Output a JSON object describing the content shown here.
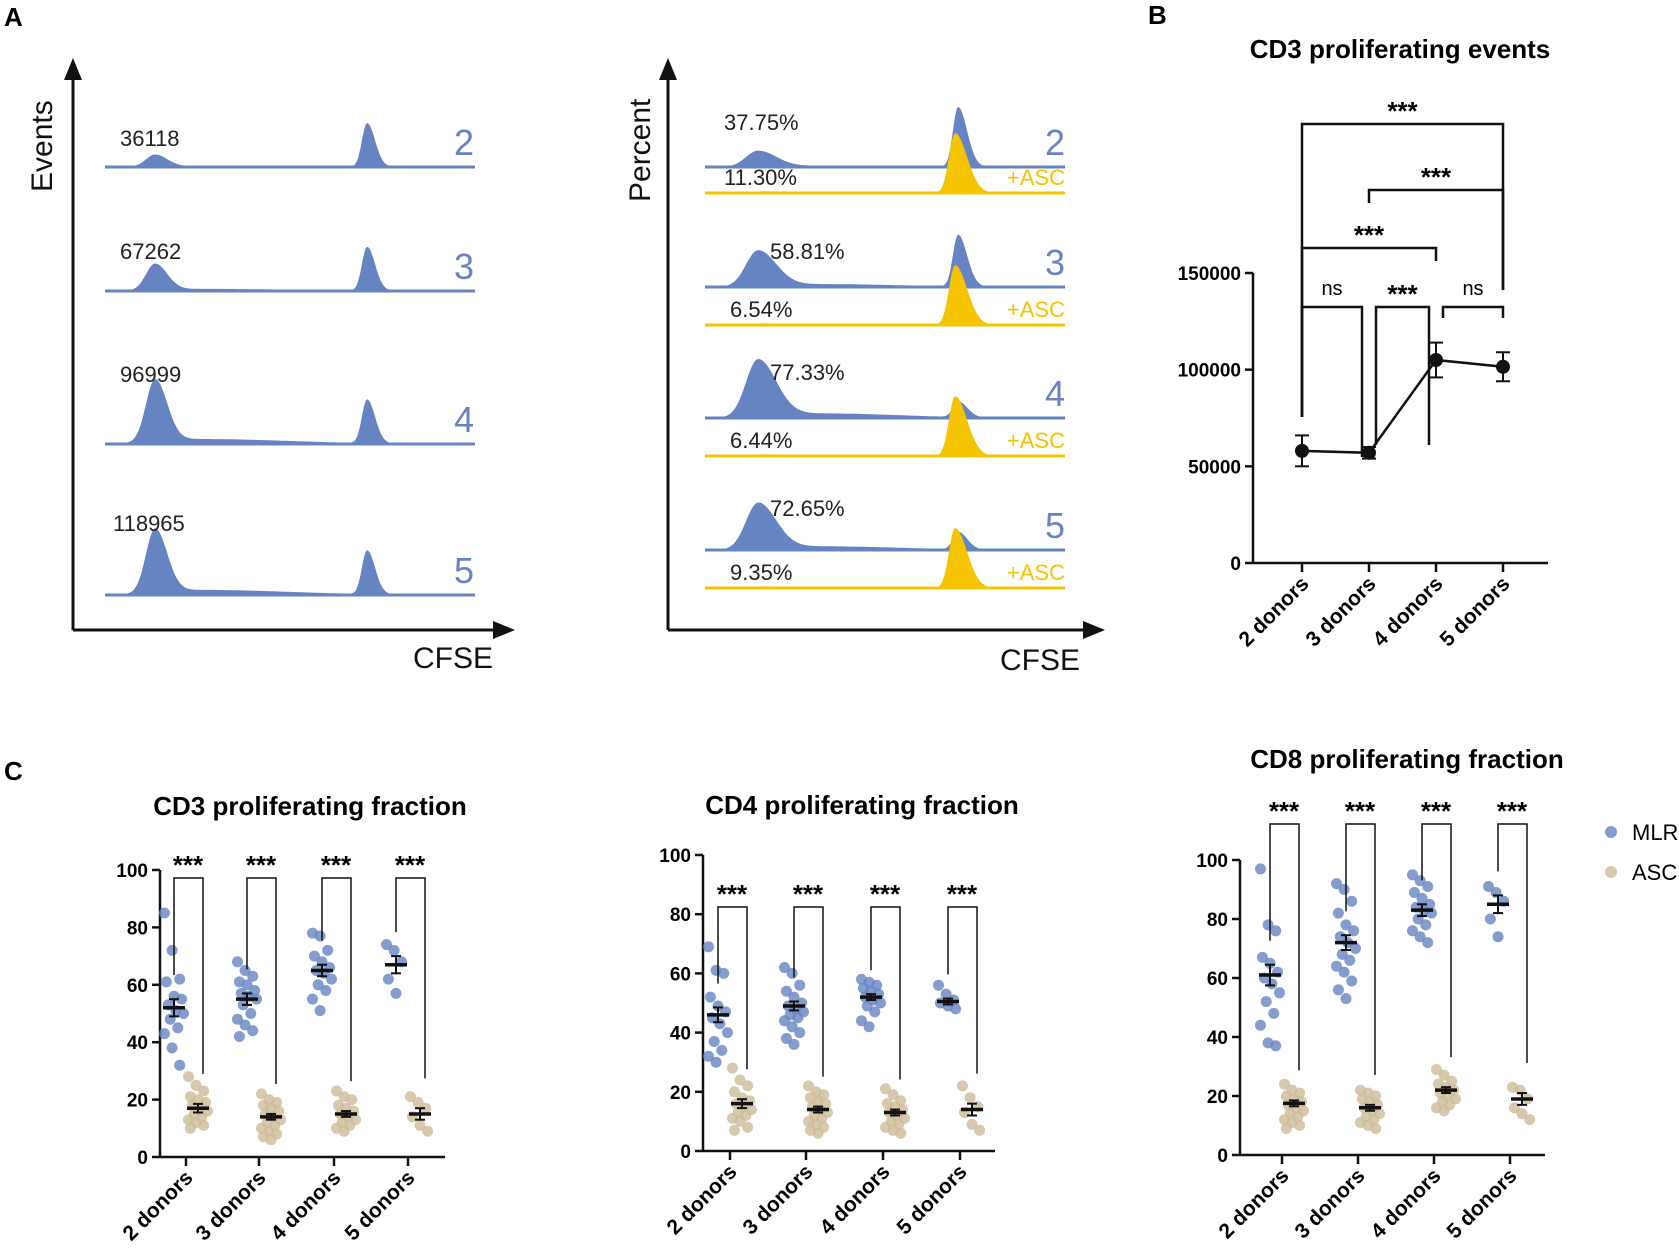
{
  "colors": {
    "blue": "#6683c2",
    "gold": "#f5c400",
    "asc_point": "#cdbb99",
    "black": "#111111"
  },
  "panel_labels": [
    "A",
    "B",
    "C"
  ],
  "panel_a": {
    "left": {
      "ylabel": "Events",
      "xlabel": "CFSE",
      "rows": [
        {
          "donor": "2",
          "count": "36118",
          "prolif_peak": 0.15
        },
        {
          "donor": "3",
          "count": "67262",
          "prolif_peak": 0.33
        },
        {
          "donor": "4",
          "count": "96999",
          "prolif_peak": 0.78
        },
        {
          "donor": "5",
          "count": "118965",
          "prolif_peak": 0.8
        }
      ]
    },
    "right": {
      "ylabel": "Percent",
      "xlabel": "CFSE",
      "asc_label": "+ASC",
      "rows": [
        {
          "donor": "2",
          "mlr_percent": "37.75%",
          "asc_percent": "11.30%"
        },
        {
          "donor": "3",
          "mlr_percent": "58.81%",
          "asc_percent": "6.54%"
        },
        {
          "donor": "4",
          "mlr_percent": "77.33%",
          "asc_percent": "6.44%"
        },
        {
          "donor": "5",
          "mlr_percent": "72.65%",
          "asc_percent": "9.35%"
        }
      ]
    }
  },
  "chart_data": [
    {
      "id": "B",
      "type": "line",
      "title": "CD3 proliferating events",
      "categories": [
        "2 donors",
        "3 donors",
        "4 donors",
        "5 donors"
      ],
      "values": [
        58000,
        57000,
        105000,
        101500
      ],
      "errors": [
        8000,
        3000,
        9000,
        7500
      ],
      "ylim": [
        0,
        150000
      ],
      "yticks": [
        "0",
        "50000",
        "100000",
        "150000"
      ],
      "comparisons": [
        {
          "from": 0,
          "to": 1,
          "label": "ns"
        },
        {
          "from": 1,
          "to": 2,
          "label": "***"
        },
        {
          "from": 2,
          "to": 3,
          "label": "ns"
        },
        {
          "from": 0,
          "to": 2,
          "label": "***"
        },
        {
          "from": 1,
          "to": 3,
          "label": "***"
        },
        {
          "from": 0,
          "to": 3,
          "label": "***"
        }
      ]
    },
    {
      "id": "C1",
      "type": "scatter",
      "title": "CD3 proliferating fraction",
      "categories": [
        "2 donors",
        "3 donors",
        "4 donors",
        "5 donors"
      ],
      "ylim": [
        0,
        100
      ],
      "yticks": [
        "0",
        "20",
        "40",
        "60",
        "80",
        "100"
      ],
      "significance": [
        "***",
        "***",
        "***",
        "***"
      ],
      "series": [
        {
          "name": "MLR",
          "means": [
            52,
            55,
            65,
            67
          ],
          "sems": [
            3,
            2,
            2,
            3
          ],
          "points": [
            [
              85,
              72,
              62,
              61,
              56,
              55,
              53,
              51,
              50,
              48,
              45,
              43,
              38,
              32
            ],
            [
              68,
              65,
              63,
              61,
              60,
              58,
              57,
              56,
              55,
              53,
              50,
              48,
              46,
              44,
              42
            ],
            [
              78,
              77,
              72,
              70,
              68,
              66,
              65,
              64,
              62,
              60,
              58,
              55,
              51
            ],
            [
              74,
              72,
              68,
              62,
              57
            ]
          ]
        },
        {
          "name": "ASC",
          "means": [
            17,
            14,
            15,
            15
          ],
          "sems": [
            1.5,
            1,
            1,
            2
          ],
          "points": [
            [
              28,
              25,
              23,
              21,
              20,
              19,
              18,
              17,
              16,
              15,
              14,
              13,
              12,
              11,
              10
            ],
            [
              22,
              20,
              19,
              18,
              17,
              16,
              15,
              14,
              13,
              12,
              11,
              10,
              9,
              8,
              7,
              6
            ],
            [
              23,
              21,
              20,
              18,
              17,
              16,
              15,
              14,
              13,
              12,
              11,
              10,
              9
            ],
            [
              21,
              19,
              17,
              14,
              11,
              9
            ]
          ]
        }
      ]
    },
    {
      "id": "C2",
      "type": "scatter",
      "title": "CD4 proliferating fraction",
      "categories": [
        "2 donors",
        "3 donors",
        "4 donors",
        "5 donors"
      ],
      "ylim": [
        0,
        100
      ],
      "yticks": [
        "0",
        "20",
        "40",
        "60",
        "80",
        "100"
      ],
      "significance": [
        "***",
        "***",
        "***",
        "***"
      ],
      "series": [
        {
          "name": "MLR",
          "means": [
            46,
            49,
            52,
            50.5
          ],
          "sems": [
            2.5,
            1.5,
            1,
            1
          ],
          "points": [
            [
              69,
              61,
              60,
              52,
              49,
              47,
              45,
              43,
              40,
              37,
              34,
              32,
              30
            ],
            [
              62,
              60,
              56,
              54,
              52,
              50,
              49,
              48,
              47,
              46,
              45,
              44,
              42,
              40,
              38,
              36
            ],
            [
              58,
              57,
              56,
              55,
              54,
              53,
              52,
              51,
              50,
              49,
              47,
              44,
              42
            ],
            [
              56,
              53,
              51,
              50,
              49,
              48
            ]
          ]
        },
        {
          "name": "ASC",
          "means": [
            16,
            14,
            13,
            14
          ],
          "sems": [
            1.5,
            1,
            1,
            2
          ],
          "points": [
            [
              28,
              24,
              22,
              20,
              18,
              17,
              16,
              15,
              14,
              13,
              12,
              11,
              10,
              8,
              7
            ],
            [
              22,
              20,
              19,
              18,
              17,
              16,
              15,
              14,
              13,
              12,
              11,
              10,
              9,
              8,
              7,
              6
            ],
            [
              21,
              19,
              17,
              16,
              15,
              14,
              13,
              12,
              11,
              10,
              9,
              8,
              7,
              6
            ],
            [
              22,
              18,
              15,
              13,
              9,
              7
            ]
          ]
        }
      ]
    },
    {
      "id": "C3",
      "type": "scatter",
      "title": "CD8 proliferating fraction",
      "categories": [
        "2 donors",
        "3 donors",
        "4 donors",
        "5 donors"
      ],
      "ylim": [
        0,
        100
      ],
      "yticks": [
        "0",
        "20",
        "40",
        "60",
        "80",
        "100"
      ],
      "significance": [
        "***",
        "***",
        "***",
        "***"
      ],
      "series": [
        {
          "name": "MLR",
          "means": [
            61,
            72,
            83,
            85
          ],
          "sems": [
            3.5,
            2.5,
            2,
            3
          ],
          "points": [
            [
              97,
              78,
              76,
              67,
              65,
              62,
              60,
              58,
              55,
              52,
              48,
              44,
              38,
              37
            ],
            [
              92,
              90,
              86,
              82,
              78,
              76,
              74,
              72,
              70,
              68,
              66,
              64,
              62,
              59,
              56,
              53
            ],
            [
              95,
              93,
              91,
              89,
              87,
              85,
              84,
              83,
              82,
              80,
              78,
              76,
              74,
              72
            ],
            [
              91,
              89,
              86,
              80,
              74
            ]
          ]
        },
        {
          "name": "ASC",
          "means": [
            17.5,
            16,
            22,
            19
          ],
          "sems": [
            1,
            1,
            1,
            2
          ],
          "points": [
            [
              24,
              22,
              21,
              20,
              19,
              18,
              17,
              16,
              15,
              14,
              13,
              12,
              11,
              10,
              9
            ],
            [
              22,
              21,
              20,
              19,
              18,
              17,
              16,
              15,
              14,
              13,
              12,
              11,
              10,
              9
            ],
            [
              29,
              27,
              25,
              24,
              23,
              22,
              21,
              20,
              19,
              18,
              17,
              16,
              15
            ],
            [
              23,
              22,
              19,
              16,
              14,
              12
            ]
          ]
        }
      ]
    }
  ],
  "legend": [
    {
      "name": "MLR"
    },
    {
      "name": "ASC"
    }
  ]
}
